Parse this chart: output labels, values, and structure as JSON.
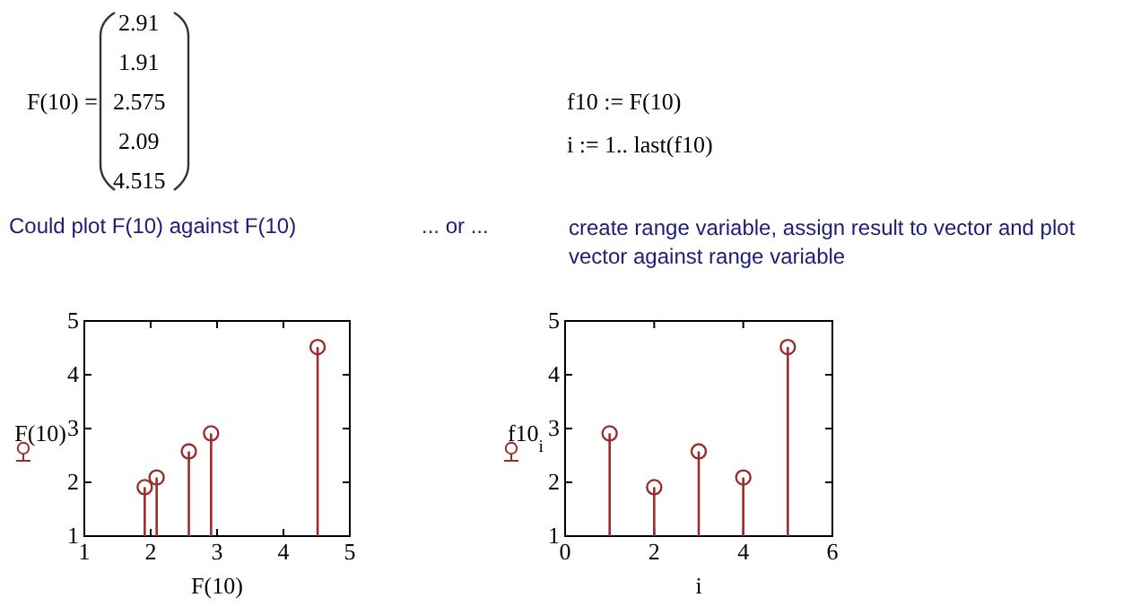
{
  "chart_data": [
    {
      "type": "other",
      "annotations": [
        "F(10) =",
        "2.91",
        "1.91",
        "2.575",
        "2.09",
        "4.515",
        "f10 := F(10)",
        "i := 1.. last(f10)",
        "Could plot F(10) against F(10)",
        "... or ...",
        "create range variable, assign result to vector and plot vector against range variable"
      ]
    },
    {
      "type": "lollipop",
      "x": [
        2.91,
        1.91,
        2.575,
        2.09,
        4.515
      ],
      "values": [
        2.91,
        1.91,
        2.575,
        2.09,
        4.515
      ],
      "color": "#9b2c2c",
      "marker": "circle",
      "xlim": [
        1,
        5
      ],
      "xticks": [
        1,
        2,
        3,
        4,
        5
      ],
      "ylim": [
        1,
        5
      ],
      "yticks": [
        1,
        2,
        3,
        4,
        5
      ],
      "xlabel": "F(10)",
      "ylabel": "F(10)"
    },
    {
      "type": "lollipop",
      "x": [
        1,
        2,
        3,
        4,
        5
      ],
      "values": [
        2.91,
        1.91,
        2.575,
        2.09,
        4.515
      ],
      "color": "#9b2c2c",
      "marker": "circle",
      "xlim": [
        0,
        6
      ],
      "xticks": [
        0,
        2,
        4,
        6
      ],
      "ylim": [
        1,
        5
      ],
      "yticks": [
        1,
        2,
        3,
        4,
        5
      ],
      "xlabel": "i",
      "ylabel": "f10$_{i}$"
    }
  ]
}
